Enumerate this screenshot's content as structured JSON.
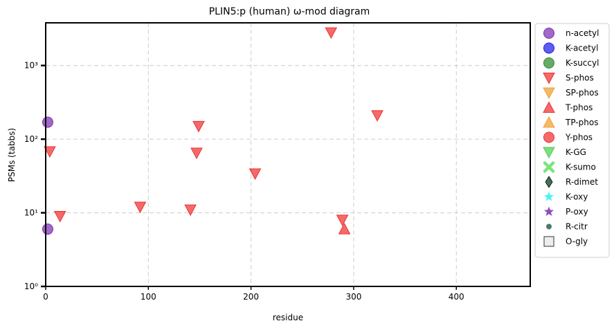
{
  "chart_data": {
    "type": "scatter",
    "title": "PLIN5:p (human) ω-mod diagram",
    "xlabel": "residue",
    "ylabel": "PSMs (tabbs)",
    "xlim": [
      0,
      472
    ],
    "ylim": [
      1,
      3800
    ],
    "yscale": "log",
    "grid": true,
    "legend_position": "right-outside",
    "x_ticks": [
      "0",
      "100",
      "200",
      "300",
      "400"
    ],
    "x_tick_values": [
      0,
      100,
      200,
      300,
      400
    ],
    "y_ticks": [
      "10⁰",
      "10¹",
      "10²",
      "10³"
    ],
    "y_tick_values": [
      1,
      10,
      100,
      1000
    ],
    "legend": [
      {
        "name": "n-acetyl",
        "marker": "circle",
        "color": "#7b2fb0"
      },
      {
        "name": "K-acetyl",
        "marker": "circle",
        "color": "#1f1fe8"
      },
      {
        "name": "K-succyl",
        "marker": "circle",
        "color": "#2e8b2e"
      },
      {
        "name": "S-phos",
        "marker": "triangle-down",
        "color": "#f03030"
      },
      {
        "name": "SP-phos",
        "marker": "triangle-down",
        "color": "#f0a030"
      },
      {
        "name": "T-phos",
        "marker": "triangle-up",
        "color": "#f03030"
      },
      {
        "name": "TP-phos",
        "marker": "triangle-up",
        "color": "#f0a030"
      },
      {
        "name": "Y-phos",
        "marker": "circle",
        "color": "#f03030"
      },
      {
        "name": "K-GG",
        "marker": "triangle-down",
        "color": "#50d050"
      },
      {
        "name": "K-sumo",
        "marker": "x",
        "color": "#70e070"
      },
      {
        "name": "R-dimet",
        "marker": "diamond",
        "color": "#1f5a3a"
      },
      {
        "name": "K-oxy",
        "marker": "star",
        "color": "#30f0f0"
      },
      {
        "name": "P-oxy",
        "marker": "star",
        "color": "#7b2fb0"
      },
      {
        "name": "R-citr",
        "marker": "small-circle",
        "color": "#3a6a5a"
      },
      {
        "name": "O-gly",
        "marker": "square",
        "color": "#eeeeee"
      }
    ],
    "series": [
      {
        "name": "n-acetyl",
        "marker": "circle",
        "color": "#7b2fb0",
        "points": [
          {
            "x": 2,
            "y": 170
          },
          {
            "x": 2,
            "y": 6
          }
        ]
      },
      {
        "name": "S-phos",
        "marker": "triangle-down",
        "color": "#f03030",
        "points": [
          {
            "x": 4,
            "y": 68
          },
          {
            "x": 14,
            "y": 9
          },
          {
            "x": 92,
            "y": 12
          },
          {
            "x": 141,
            "y": 11
          },
          {
            "x": 147,
            "y": 65
          },
          {
            "x": 149,
            "y": 150
          },
          {
            "x": 204,
            "y": 34
          },
          {
            "x": 278,
            "y": 2800
          },
          {
            "x": 289,
            "y": 8
          },
          {
            "x": 323,
            "y": 210
          }
        ]
      },
      {
        "name": "T-phos",
        "marker": "triangle-up",
        "color": "#f03030",
        "points": [
          {
            "x": 291,
            "y": 6
          }
        ]
      }
    ]
  }
}
